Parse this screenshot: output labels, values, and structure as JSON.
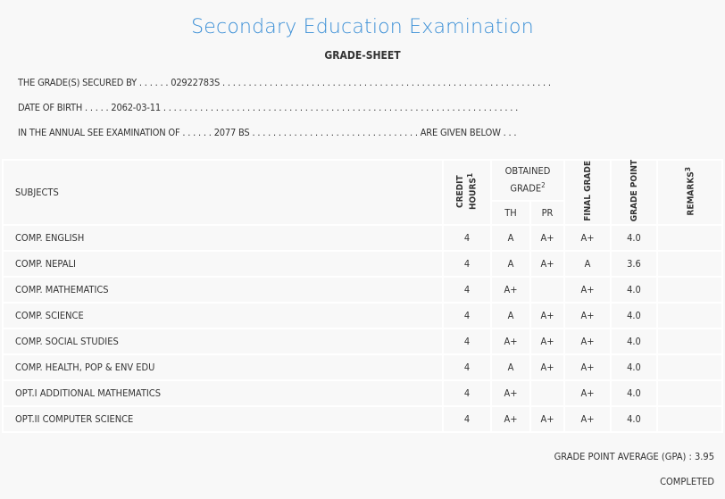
{
  "title": "Secondary Education Examination",
  "subtitle": "GRADE-SHEET",
  "info": {
    "secured_by": "THE GRADE(S) SECURED BY . . . . . . 02922783S . . . . . . . . . . . . . . . . . . . . . . . . . . . . . . . . . . . . . . . . . . . . . . . . . . . . . . . . . . . . . . .",
    "dob": "DATE OF BIRTH . . . . . 2062-03-11 . . . . . . . . . . . . . . . . . . . . . . . . . . . . . . . . . . . . . . . . . . . . . . . . . . . . . . . . . . . . . . . . . . . .",
    "exam": "IN THE ANNUAL SEE EXAMINATION OF . . . . . . 2077 BS . . . . . . . . . . . . . . . . . . . . . . . . . . . . . . . . ARE GIVEN BELOW . . ."
  },
  "headers": {
    "subjects": "SUBJECTS",
    "credit": "CREDIT HOURS",
    "credit_sup": "1",
    "obtained": "OBTAINED GRADE",
    "obtained_sup": "2",
    "th": "TH",
    "pr": "PR",
    "final": "FINAL GRADE",
    "point": "GRADE POINT",
    "remarks": "REMARKS",
    "remarks_sup": "3"
  },
  "rows": [
    {
      "subject": "COMP. ENGLISH",
      "credit": "4",
      "th": "A",
      "pr": "A+",
      "final": "A+",
      "point": "4.0",
      "remarks": ""
    },
    {
      "subject": "COMP. NEPALI",
      "credit": "4",
      "th": "A",
      "pr": "A+",
      "final": "A",
      "point": "3.6",
      "remarks": ""
    },
    {
      "subject": "COMP. MATHEMATICS",
      "credit": "4",
      "th": "A+",
      "pr": "",
      "final": "A+",
      "point": "4.0",
      "remarks": ""
    },
    {
      "subject": "COMP. SCIENCE",
      "credit": "4",
      "th": "A",
      "pr": "A+",
      "final": "A+",
      "point": "4.0",
      "remarks": ""
    },
    {
      "subject": "COMP. SOCIAL STUDIES",
      "credit": "4",
      "th": "A+",
      "pr": "A+",
      "final": "A+",
      "point": "4.0",
      "remarks": ""
    },
    {
      "subject": "COMP. HEALTH, POP & ENV EDU",
      "credit": "4",
      "th": "A",
      "pr": "A+",
      "final": "A+",
      "point": "4.0",
      "remarks": ""
    },
    {
      "subject": "OPT.I ADDITIONAL MATHEMATICS",
      "credit": "4",
      "th": "A+",
      "pr": "",
      "final": "A+",
      "point": "4.0",
      "remarks": ""
    },
    {
      "subject": "OPT.II COMPUTER SCIENCE",
      "credit": "4",
      "th": "A+",
      "pr": "A+",
      "final": "A+",
      "point": "4.0",
      "remarks": ""
    }
  ],
  "gpa": "GRADE POINT AVERAGE (GPA) : 3.95",
  "status": "COMPLETED"
}
